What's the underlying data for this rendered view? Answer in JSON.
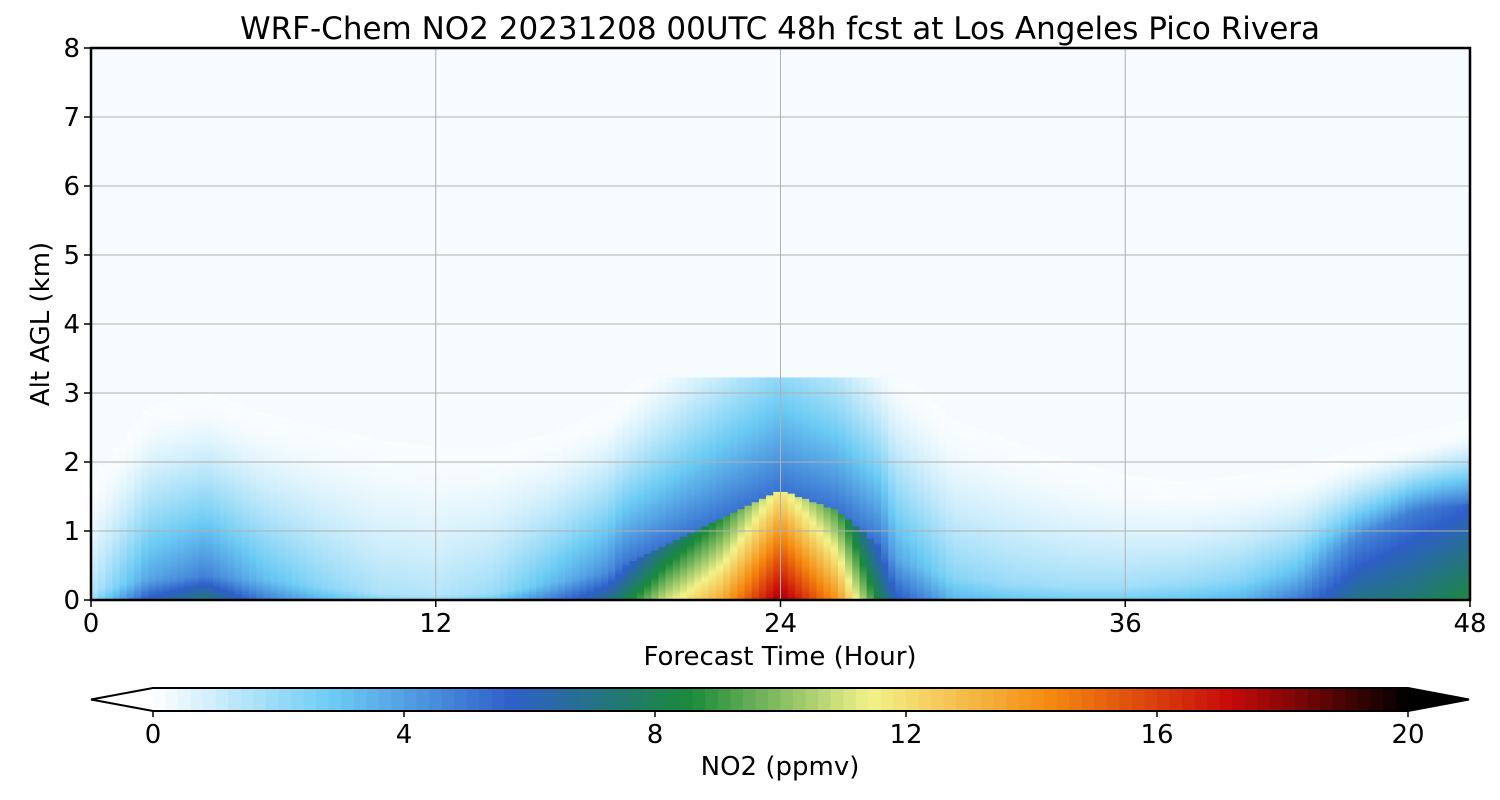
{
  "chart_data": {
    "type": "heatmap",
    "title": "WRF-Chem NO2  20231208 00UTC 48h fcst at Los Angeles Pico Rivera",
    "xlabel": "Forecast Time (Hour)",
    "ylabel": "Alt AGL (km)",
    "xlim": [
      0,
      48
    ],
    "ylim": [
      0,
      8
    ],
    "xticks": [
      "0",
      "12",
      "24",
      "36",
      "48"
    ],
    "yticks": [
      "0",
      "1",
      "2",
      "3",
      "4",
      "5",
      "6",
      "7",
      "8"
    ],
    "grid": true,
    "colorbar": {
      "label": "NO2  (ppmv)",
      "range": [
        0,
        20
      ],
      "ticks": [
        "0",
        "4",
        "8",
        "12",
        "16",
        "20"
      ],
      "extend": "both",
      "colors": [
        "#ffffff",
        "#6ccbf4",
        "#2e5fc8",
        "#1a8a3a",
        "#f3f28a",
        "#f58a10",
        "#c80a0a",
        "#000000"
      ]
    },
    "x": [
      0,
      2,
      4,
      6,
      8,
      10,
      12,
      14,
      16,
      18,
      20,
      22,
      24,
      26,
      28,
      30,
      32,
      34,
      36,
      38,
      40,
      42,
      44,
      46,
      48
    ],
    "series": [
      {
        "values": [
          1.5,
          2.6,
          2.8,
          2.5,
          2.3,
          2.1,
          2.0,
          2.0,
          2.2,
          2.6,
          3.4,
          4.2,
          5.0,
          4.3,
          3.2,
          2.4,
          2.1,
          1.8,
          1.6,
          1.5,
          1.6,
          1.7,
          2.0,
          2.2,
          2.4
        ]
      },
      {
        "values": [
          0.15,
          0.3,
          0.35,
          0.3,
          0.2,
          0.1,
          0.08,
          0.1,
          0.25,
          0.4,
          0.8,
          1.2,
          1.6,
          1.3,
          0.6,
          0.35,
          0.25,
          0.2,
          0.2,
          0.25,
          0.3,
          0.4,
          0.9,
          1.3,
          1.4
        ]
      },
      {
        "values": [
          2.0,
          6.0,
          7.5,
          5.0,
          3.5,
          2.5,
          2.2,
          3.0,
          5.0,
          7.0,
          11.0,
          13.5,
          18.0,
          14.0,
          6.0,
          3.5,
          3.0,
          2.8,
          2.8,
          3.0,
          3.5,
          5.0,
          7.0,
          7.5,
          8.5
        ]
      }
    ]
  }
}
